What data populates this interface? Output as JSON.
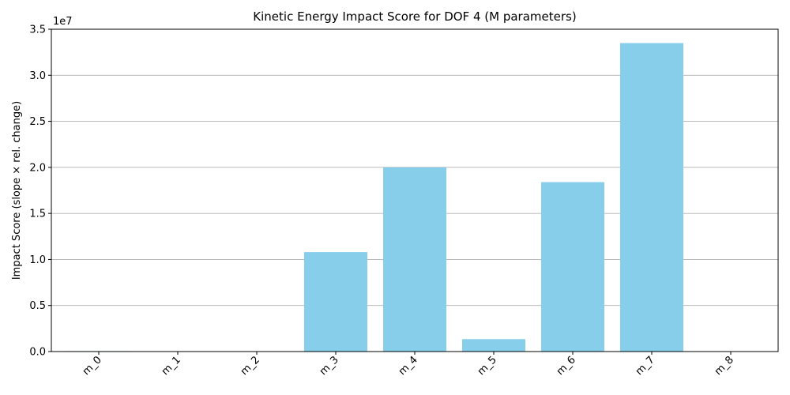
{
  "chart_data": {
    "type": "bar",
    "title": "Kinetic Energy Impact Score for DOF 4 (M parameters)",
    "xlabel": "",
    "ylabel": "Impact Score (slope × rel. change)",
    "y_offset_label": "1e7",
    "categories": [
      "m_0",
      "m_1",
      "m_2",
      "m_3",
      "m_4",
      "m_5",
      "m_6",
      "m_7",
      "m_8"
    ],
    "values": [
      50000,
      0,
      0,
      10800000,
      20000000,
      1350000,
      18400000,
      33500000,
      0
    ],
    "ylim": [
      0,
      35000000
    ],
    "y_ticks": [
      0,
      5000000,
      10000000,
      15000000,
      20000000,
      25000000,
      30000000,
      35000000
    ],
    "y_tick_labels": [
      "0.0",
      "0.5",
      "1.0",
      "1.5",
      "2.0",
      "2.5",
      "3.0",
      "3.5"
    ],
    "bar_color": "#87ceeb",
    "grid": "horizontal",
    "legend": "none",
    "x_tick_rotation": "45 degrees"
  }
}
